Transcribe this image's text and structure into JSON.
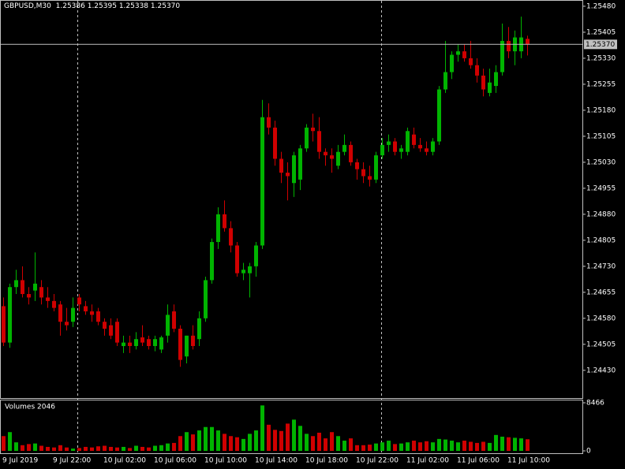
{
  "chart_data": {
    "type": "candlestick",
    "title": "GBPUSD,M30",
    "quote": [
      "1.25386",
      "1.25395",
      "1.25338",
      "1.25370"
    ],
    "categories": [
      "9 Jul 2019",
      null,
      null,
      null,
      null,
      null,
      null,
      null,
      "9 Jul 22:00",
      null,
      null,
      null,
      null,
      null,
      null,
      null,
      "10 Jul 02:00",
      null,
      null,
      null,
      null,
      null,
      null,
      null,
      "10 Jul 06:00",
      null,
      null,
      null,
      null,
      null,
      null,
      null,
      "10 Jul 10:00",
      null,
      null,
      null,
      null,
      null,
      null,
      null,
      "10 Jul 14:00",
      null,
      null,
      null,
      null,
      null,
      null,
      null,
      "10 Jul 18:00",
      null,
      null,
      null,
      null,
      null,
      null,
      null,
      "10 Jul 22:00",
      null,
      null,
      null,
      null,
      null,
      null,
      null,
      "11 Jul 02:00",
      null,
      null,
      null,
      null,
      null,
      null,
      null,
      "11 Jul 06:00",
      null,
      null,
      null,
      null,
      null,
      null,
      null,
      "11 Jul 10:00",
      null,
      null,
      null
    ],
    "open": [
      1.24615,
      1.2451,
      1.2467,
      1.2469,
      1.2465,
      1.2466,
      1.2467,
      1.2464,
      1.2463,
      1.2462,
      1.2457,
      1.2457,
      1.2464,
      1.24615,
      1.246,
      1.246,
      1.2457,
      1.2456,
      1.2457,
      1.245,
      1.2451,
      1.245,
      1.24525,
      1.2452,
      1.245,
      1.2449,
      1.2453,
      1.246,
      1.2455,
      1.2447,
      1.2453,
      1.2452,
      1.2458,
      1.2469,
      1.248,
      1.2488,
      1.2484,
      1.2479,
      1.2471,
      1.2471,
      1.2473,
      1.2479,
      1.2516,
      1.2513,
      1.2504,
      1.25,
      1.2497,
      1.2498,
      1.2507,
      1.2513,
      1.2512,
      1.2506,
      1.2505,
      1.2502,
      1.2506,
      1.2508,
      1.2503,
      1.2501,
      1.2499,
      1.2498,
      1.2505,
      1.2508,
      1.2509,
      1.2506,
      1.2506,
      1.2511,
      1.2508,
      1.2507,
      1.2506,
      1.2509,
      1.2524,
      1.2529,
      1.2534,
      1.2535,
      1.2533,
      1.2531,
      1.2528,
      1.2523,
      1.2525,
      1.2529,
      1.2538,
      1.2535,
      1.2535,
      1.25386
    ],
    "high": [
      1.2464,
      1.2468,
      1.2472,
      1.2473,
      1.2467,
      1.2477,
      1.2469,
      1.2467,
      1.2465,
      1.2463,
      1.2461,
      1.2464,
      1.2465,
      1.2463,
      1.2462,
      1.2461,
      1.2458,
      1.2458,
      1.2458,
      1.2453,
      1.2453,
      1.2454,
      1.2456,
      1.2453,
      1.2453,
      1.2453,
      1.2462,
      1.2462,
      1.2456,
      1.2453,
      1.2456,
      1.246,
      1.247,
      1.2481,
      1.249,
      1.2492,
      1.2486,
      1.248,
      1.2474,
      1.2474,
      1.248,
      1.2521,
      1.252,
      1.2515,
      1.2506,
      1.2503,
      1.2506,
      1.2508,
      1.2514,
      1.2517,
      1.2516,
      1.2507,
      1.2507,
      1.2508,
      1.2511,
      1.2509,
      1.2504,
      1.2503,
      1.2502,
      1.2506,
      1.251,
      1.2511,
      1.251,
      1.2508,
      1.2513,
      1.2513,
      1.251,
      1.2509,
      1.251,
      1.2525,
      1.2538,
      1.2535,
      1.2537,
      1.2537,
      1.2538,
      1.2533,
      1.253,
      1.253,
      1.2531,
      1.2543,
      1.2542,
      1.2541,
      1.2545,
      1.25395
    ],
    "low": [
      1.245,
      1.24495,
      1.2465,
      1.2464,
      1.2462,
      1.2463,
      1.2462,
      1.2461,
      1.246,
      1.2453,
      1.24545,
      1.24555,
      1.246,
      1.2459,
      1.2457,
      1.2456,
      1.2453,
      1.2452,
      1.245,
      1.2448,
      1.2448,
      1.2449,
      1.245,
      1.2449,
      1.24485,
      1.2448,
      1.2451,
      1.2454,
      1.2444,
      1.2445,
      1.2449,
      1.245,
      1.2457,
      1.2468,
      1.2478,
      1.2483,
      1.2477,
      1.247,
      1.2469,
      1.2464,
      1.247,
      1.2478,
      1.2511,
      1.2502,
      1.2497,
      1.2492,
      1.2493,
      1.2495,
      1.2506,
      1.2509,
      1.2504,
      1.2502,
      1.25,
      1.2501,
      1.2505,
      1.2502,
      1.2498,
      1.2497,
      1.2496,
      1.2497,
      1.2504,
      1.2506,
      1.2505,
      1.2504,
      1.2505,
      1.2507,
      1.2506,
      1.2505,
      1.2505,
      1.2508,
      1.2523,
      1.2527,
      1.2532,
      1.2532,
      1.253,
      1.2526,
      1.2522,
      1.2522,
      1.2523,
      1.2528,
      1.2533,
      1.2531,
      1.2533,
      1.25338
    ],
    "close": [
      1.2451,
      1.2467,
      1.2469,
      1.2465,
      1.2464,
      1.2468,
      1.2464,
      1.2463,
      1.2461,
      1.2457,
      1.2456,
      1.2461,
      1.2462,
      1.246,
      1.2459,
      1.2457,
      1.2455,
      1.2453,
      1.2451,
      1.2451,
      1.245,
      1.2452,
      1.2451,
      1.245,
      1.2452,
      1.24525,
      1.2459,
      1.2455,
      1.2446,
      1.2453,
      1.245,
      1.2458,
      1.2469,
      1.248,
      1.2488,
      1.2484,
      1.2479,
      1.2471,
      1.2472,
      1.2473,
      1.2479,
      1.2516,
      1.2513,
      1.2504,
      1.25,
      1.2499,
      1.2505,
      1.2507,
      1.2513,
      1.2512,
      1.2506,
      1.2505,
      1.2504,
      1.2506,
      1.2508,
      1.2503,
      1.2501,
      1.2499,
      1.2498,
      1.2505,
      1.2508,
      1.2509,
      1.2506,
      1.2507,
      1.2512,
      1.2508,
      1.2507,
      1.2506,
      1.2509,
      1.2524,
      1.2529,
      1.2534,
      1.2535,
      1.2533,
      1.2531,
      1.2528,
      1.2524,
      1.2526,
      1.2529,
      1.2538,
      1.2535,
      1.2539,
      1.2539,
      1.2537
    ],
    "up_color": "#00b400",
    "down_color": "#d00000",
    "ylim": [
      1.2435,
      1.25498
    ],
    "yticks": [
      {
        "value": 1.2443,
        "label": "1.24430"
      },
      {
        "value": 1.24505,
        "label": "1.24505"
      },
      {
        "value": 1.2458,
        "label": "1.24580"
      },
      {
        "value": 1.24655,
        "label": "1.24655"
      },
      {
        "value": 1.2473,
        "label": "1.24730"
      },
      {
        "value": 1.24805,
        "label": "1.24805"
      },
      {
        "value": 1.2488,
        "label": "1.24880"
      },
      {
        "value": 1.24955,
        "label": "1.24955"
      },
      {
        "value": 1.2503,
        "label": "1.25030"
      },
      {
        "value": 1.25105,
        "label": "1.25105"
      },
      {
        "value": 1.2518,
        "label": "1.25180"
      },
      {
        "value": 1.25255,
        "label": "1.25255"
      },
      {
        "value": 1.2533,
        "label": "1.25330"
      },
      {
        "value": 1.25405,
        "label": "1.25405"
      },
      {
        "value": 1.2548,
        "label": "1.25480"
      }
    ],
    "volume_title": "Volumes 2046",
    "volumes": [
      2600,
      3300,
      1500,
      1000,
      1200,
      1300,
      900,
      700,
      600,
      1000,
      600,
      400,
      500,
      700,
      600,
      800,
      900,
      700,
      600,
      700,
      500,
      900,
      700,
      600,
      900,
      1000,
      1300,
      1400,
      2600,
      3300,
      2900,
      3600,
      4200,
      4200,
      3600,
      3000,
      2600,
      2400,
      2100,
      3000,
      3600,
      8000,
      4600,
      3700,
      3500,
      4800,
      5500,
      4400,
      3000,
      2600,
      3200,
      2200,
      3300,
      2600,
      1800,
      2200,
      1000,
      1000,
      1100,
      1300,
      1500,
      1800,
      1200,
      1300,
      1500,
      1800,
      1500,
      1700,
      1500,
      2100,
      2000,
      1800,
      1500,
      1800,
      1600,
      1400,
      1600,
      1400,
      2800,
      2500,
      2400,
      2300,
      2200,
      2046
    ],
    "vlim": [
      0,
      8466
    ],
    "vticks": [
      0,
      8466
    ]
  }
}
